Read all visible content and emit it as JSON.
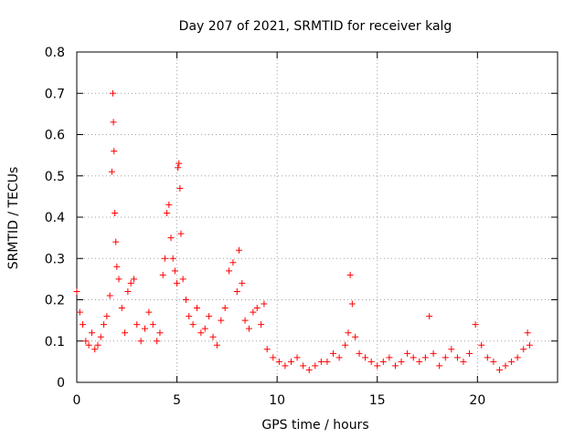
{
  "chart_data": {
    "type": "scatter",
    "title": "Day 207 of 2021, SRMTID for receiver kalg",
    "xlabel": "GPS time / hours",
    "ylabel": "SRMTID / TECUs",
    "xlim": [
      0,
      24
    ],
    "ylim": [
      0,
      0.8
    ],
    "xticks": [
      0,
      5,
      10,
      15,
      20
    ],
    "xtick_labels": [
      "0",
      "5",
      "10",
      "15",
      "20"
    ],
    "yticks": [
      0,
      0.1,
      0.2,
      0.3,
      0.4,
      0.5,
      0.6,
      0.7,
      0.8
    ],
    "ytick_labels": [
      "0",
      "0.1",
      "0.2",
      "0.3",
      "0.4",
      "0.5",
      "0.6",
      "0.7",
      "0.8"
    ],
    "grid": true,
    "marker": "+",
    "series": [
      {
        "name": "SRMTID",
        "color": "#ff0000",
        "x": [
          0.0,
          0.15,
          0.3,
          0.45,
          0.6,
          0.75,
          0.9,
          1.05,
          1.2,
          1.35,
          1.5,
          1.65,
          1.75,
          1.8,
          1.83,
          1.86,
          1.9,
          1.95,
          2.0,
          2.1,
          2.25,
          2.4,
          2.55,
          2.7,
          2.85,
          3.0,
          3.2,
          3.4,
          3.6,
          3.8,
          4.0,
          4.15,
          4.3,
          4.4,
          4.5,
          4.6,
          4.7,
          4.8,
          4.9,
          5.0,
          5.05,
          5.1,
          5.15,
          5.2,
          5.3,
          5.45,
          5.6,
          5.8,
          6.0,
          6.2,
          6.4,
          6.6,
          6.8,
          7.0,
          7.2,
          7.4,
          7.6,
          7.8,
          8.0,
          8.1,
          8.25,
          8.4,
          8.6,
          8.8,
          9.0,
          9.2,
          9.35,
          9.5,
          9.8,
          10.1,
          10.4,
          10.7,
          11.0,
          11.3,
          11.6,
          11.9,
          12.2,
          12.5,
          12.8,
          13.1,
          13.4,
          13.55,
          13.65,
          13.75,
          13.9,
          14.1,
          14.4,
          14.7,
          15.0,
          15.3,
          15.6,
          15.9,
          16.2,
          16.5,
          16.8,
          17.1,
          17.4,
          17.6,
          17.8,
          18.1,
          18.4,
          18.7,
          19.0,
          19.3,
          19.6,
          19.9,
          20.2,
          20.5,
          20.8,
          21.1,
          21.4,
          21.7,
          22.0,
          22.3,
          22.5,
          22.6
        ],
        "y": [
          0.22,
          0.17,
          0.14,
          0.1,
          0.09,
          0.12,
          0.08,
          0.09,
          0.11,
          0.14,
          0.16,
          0.21,
          0.51,
          0.7,
          0.63,
          0.56,
          0.41,
          0.34,
          0.28,
          0.25,
          0.18,
          0.12,
          0.22,
          0.24,
          0.25,
          0.14,
          0.1,
          0.13,
          0.17,
          0.14,
          0.1,
          0.12,
          0.26,
          0.3,
          0.41,
          0.43,
          0.35,
          0.3,
          0.27,
          0.24,
          0.52,
          0.53,
          0.47,
          0.36,
          0.25,
          0.2,
          0.16,
          0.14,
          0.18,
          0.12,
          0.13,
          0.16,
          0.11,
          0.09,
          0.15,
          0.18,
          0.27,
          0.29,
          0.22,
          0.32,
          0.24,
          0.15,
          0.13,
          0.17,
          0.18,
          0.14,
          0.19,
          0.08,
          0.06,
          0.05,
          0.04,
          0.05,
          0.06,
          0.04,
          0.03,
          0.04,
          0.05,
          0.05,
          0.07,
          0.06,
          0.09,
          0.12,
          0.26,
          0.19,
          0.11,
          0.07,
          0.06,
          0.05,
          0.04,
          0.05,
          0.06,
          0.04,
          0.05,
          0.07,
          0.06,
          0.05,
          0.06,
          0.16,
          0.07,
          0.04,
          0.06,
          0.08,
          0.06,
          0.05,
          0.07,
          0.14,
          0.09,
          0.06,
          0.05,
          0.03,
          0.04,
          0.05,
          0.06,
          0.08,
          0.12,
          0.09
        ]
      }
    ]
  }
}
